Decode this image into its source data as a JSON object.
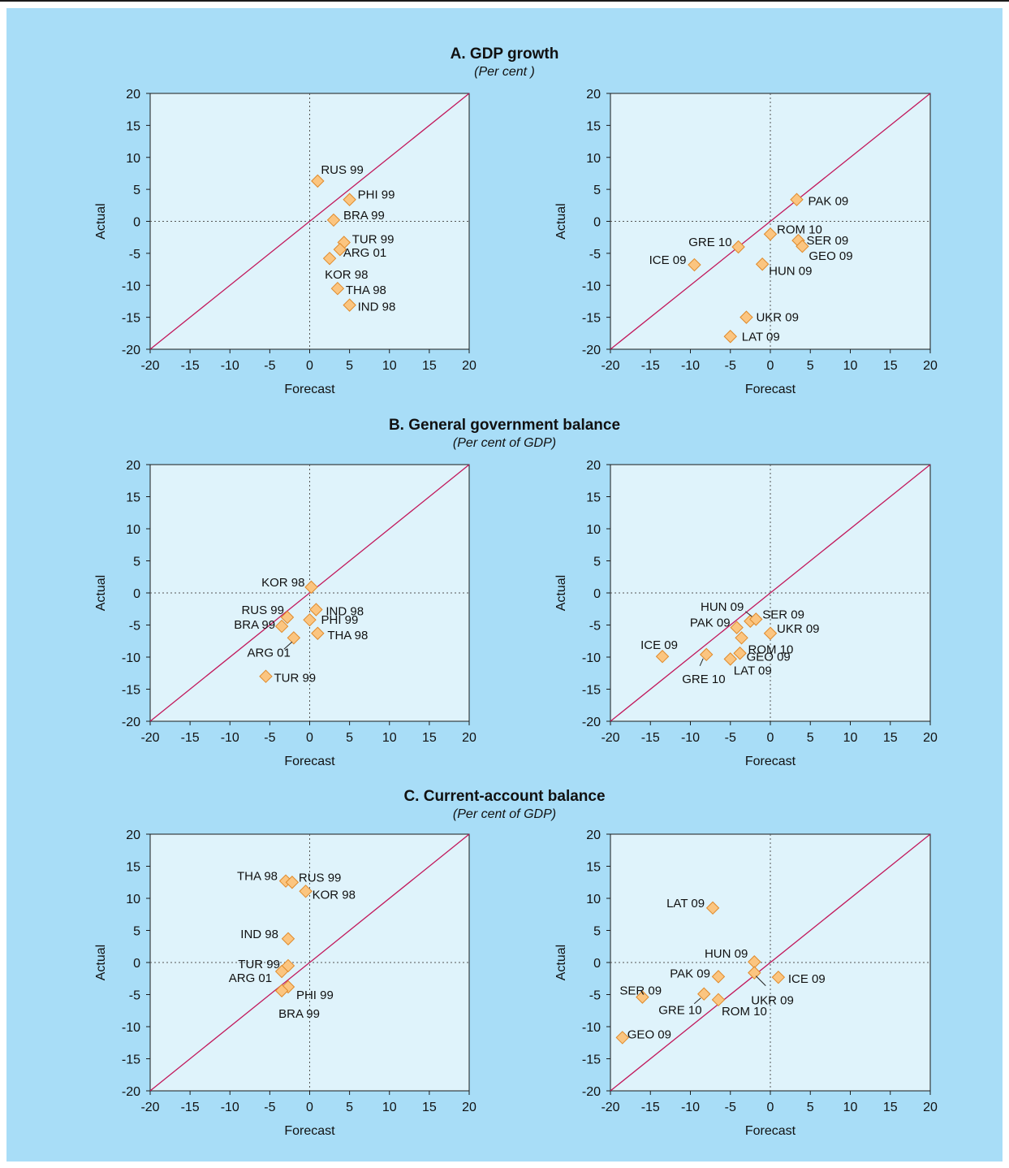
{
  "sections": [
    {
      "title": "A. GDP growth",
      "subtitle": "(Per cent )"
    },
    {
      "title": "B. General government balance",
      "subtitle": "(Per cent of GDP)"
    },
    {
      "title": "C. Current-account balance",
      "subtitle": "(Per cent of GDP)"
    }
  ],
  "colors": {
    "background": "#a8ddf7",
    "plot_area": "#dff3fb",
    "marker_fill": "#fbc580",
    "marker_stroke": "#e08a2a",
    "diagonal": "#c2185b",
    "frame": "#1a1a1a"
  },
  "chart_data": [
    {
      "type": "scatter",
      "section": 0,
      "xlabel": "Forecast",
      "ylabel": "Actual",
      "xlim": [
        -20,
        20
      ],
      "ylim": [
        -20,
        20
      ],
      "ticks": [
        -20,
        -15,
        -10,
        -5,
        0,
        5,
        10,
        15,
        20
      ],
      "reference_line": "y = x",
      "zero_lines": true,
      "points": [
        {
          "label": "RUS 99",
          "x": 1,
          "y": 6.3
        },
        {
          "label": "PHI 99",
          "x": 5,
          "y": 3.4
        },
        {
          "label": "BRA 99",
          "x": 3,
          "y": 0.2
        },
        {
          "label": "TUR 99",
          "x": 4.3,
          "y": -3.3
        },
        {
          "label": "ARG 01",
          "x": 3.8,
          "y": -4.4
        },
        {
          "label": "KOR 98",
          "x": 2.5,
          "y": -5.8
        },
        {
          "label": "THA 98",
          "x": 3.5,
          "y": -10.5
        },
        {
          "label": "IND 98",
          "x": 5,
          "y": -13.1
        }
      ]
    },
    {
      "type": "scatter",
      "section": 0,
      "xlabel": "Forecast",
      "ylabel": "Actual",
      "xlim": [
        -20,
        20
      ],
      "ylim": [
        -20,
        20
      ],
      "ticks": [
        -20,
        -15,
        -10,
        -5,
        0,
        5,
        10,
        15,
        20
      ],
      "reference_line": "y = x",
      "zero_lines": true,
      "points": [
        {
          "label": "PAK 09",
          "x": 3.3,
          "y": 3.4
        },
        {
          "label": "ROM 10",
          "x": 0,
          "y": -2
        },
        {
          "label": "GRE 10",
          "x": -4,
          "y": -4
        },
        {
          "label": "SER 09",
          "x": 3.5,
          "y": -3
        },
        {
          "label": "GEO 09",
          "x": 4,
          "y": -3.9
        },
        {
          "label": "ICE 09",
          "x": -9.5,
          "y": -6.8
        },
        {
          "label": "HUN 09",
          "x": -1,
          "y": -6.7
        },
        {
          "label": "UKR 09",
          "x": -3,
          "y": -15
        },
        {
          "label": "LAT 09",
          "x": -5,
          "y": -18
        }
      ]
    },
    {
      "type": "scatter",
      "section": 1,
      "xlabel": "Forecast",
      "ylabel": "Actual",
      "xlim": [
        -20,
        20
      ],
      "ylim": [
        -20,
        20
      ],
      "ticks": [
        -20,
        -15,
        -10,
        -5,
        0,
        5,
        10,
        15,
        20
      ],
      "reference_line": "y = x",
      "zero_lines": true,
      "points": [
        {
          "label": "KOR 98",
          "x": 0.2,
          "y": 0.9
        },
        {
          "label": "RUS 99",
          "x": -2.8,
          "y": -3.8
        },
        {
          "label": "IND 98",
          "x": 0.8,
          "y": -2.6
        },
        {
          "label": "BRA 99",
          "x": -3.5,
          "y": -5.2
        },
        {
          "label": "PHI 99",
          "x": 0,
          "y": -4.2
        },
        {
          "label": "THA 98",
          "x": 1,
          "y": -6.3
        },
        {
          "label": "ARG 01",
          "x": -2,
          "y": -7
        },
        {
          "label": "TUR 99",
          "x": -5.5,
          "y": -13
        }
      ]
    },
    {
      "type": "scatter",
      "section": 1,
      "xlabel": "Forecast",
      "ylabel": "Actual",
      "xlim": [
        -20,
        20
      ],
      "ylim": [
        -20,
        20
      ],
      "ticks": [
        -20,
        -15,
        -10,
        -5,
        0,
        5,
        10,
        15,
        20
      ],
      "reference_line": "y = x",
      "zero_lines": true,
      "points": [
        {
          "label": "HUN 09",
          "x": -2.5,
          "y": -4.4
        },
        {
          "label": "SER 09",
          "x": -1.8,
          "y": -4.1
        },
        {
          "label": "PAK 09",
          "x": -4.2,
          "y": -5.4
        },
        {
          "label": "UKR 09",
          "x": 0,
          "y": -6.3
        },
        {
          "label": "ROM 10",
          "x": -3.6,
          "y": -7
        },
        {
          "label": "ICE 09",
          "x": -13.5,
          "y": -9.9
        },
        {
          "label": "GEO 09",
          "x": -3.8,
          "y": -9.4
        },
        {
          "label": "GRE 10",
          "x": -8,
          "y": -9.6
        },
        {
          "label": "LAT 09",
          "x": -5,
          "y": -10.3
        }
      ]
    },
    {
      "type": "scatter",
      "section": 2,
      "xlabel": "Forecast",
      "ylabel": "Actual",
      "xlim": [
        -20,
        20
      ],
      "ylim": [
        -20,
        20
      ],
      "ticks": [
        -20,
        -15,
        -10,
        -5,
        0,
        5,
        10,
        15,
        20
      ],
      "reference_line": "y = x",
      "zero_lines": true,
      "points": [
        {
          "label": "THA 98",
          "x": -3,
          "y": 12.7
        },
        {
          "label": "RUS 99",
          "x": -2.2,
          "y": 12.5
        },
        {
          "label": "KOR 98",
          "x": -0.5,
          "y": 11.1
        },
        {
          "label": "IND 98",
          "x": -2.7,
          "y": 3.7
        },
        {
          "label": "TUR 99",
          "x": -2.7,
          "y": -0.5
        },
        {
          "label": "ARG 01",
          "x": -3.5,
          "y": -1.4
        },
        {
          "label": "PHI 99",
          "x": -2.7,
          "y": -3.8
        },
        {
          "label": "BRA 99",
          "x": -3.5,
          "y": -4.4
        }
      ]
    },
    {
      "type": "scatter",
      "section": 2,
      "xlabel": "Forecast",
      "ylabel": "Actual",
      "xlim": [
        -20,
        20
      ],
      "ylim": [
        -20,
        20
      ],
      "ticks": [
        -20,
        -15,
        -10,
        -5,
        0,
        5,
        10,
        15,
        20
      ],
      "reference_line": "y = x",
      "zero_lines": true,
      "points": [
        {
          "label": "LAT 09",
          "x": -7.2,
          "y": 8.5
        },
        {
          "label": "HUN 09",
          "x": -2,
          "y": 0.1
        },
        {
          "label": "PAK 09",
          "x": -6.5,
          "y": -2.2
        },
        {
          "label": "ICE 09",
          "x": 1,
          "y": -2.3
        },
        {
          "label": "UKR 09",
          "x": -2,
          "y": -1.6
        },
        {
          "label": "SER 09",
          "x": -16,
          "y": -5.4
        },
        {
          "label": "GRE 10",
          "x": -8.3,
          "y": -4.9
        },
        {
          "label": "ROM 10",
          "x": -6.5,
          "y": -5.8
        },
        {
          "label": "GEO 09",
          "x": -18.5,
          "y": -11.7
        }
      ]
    }
  ]
}
